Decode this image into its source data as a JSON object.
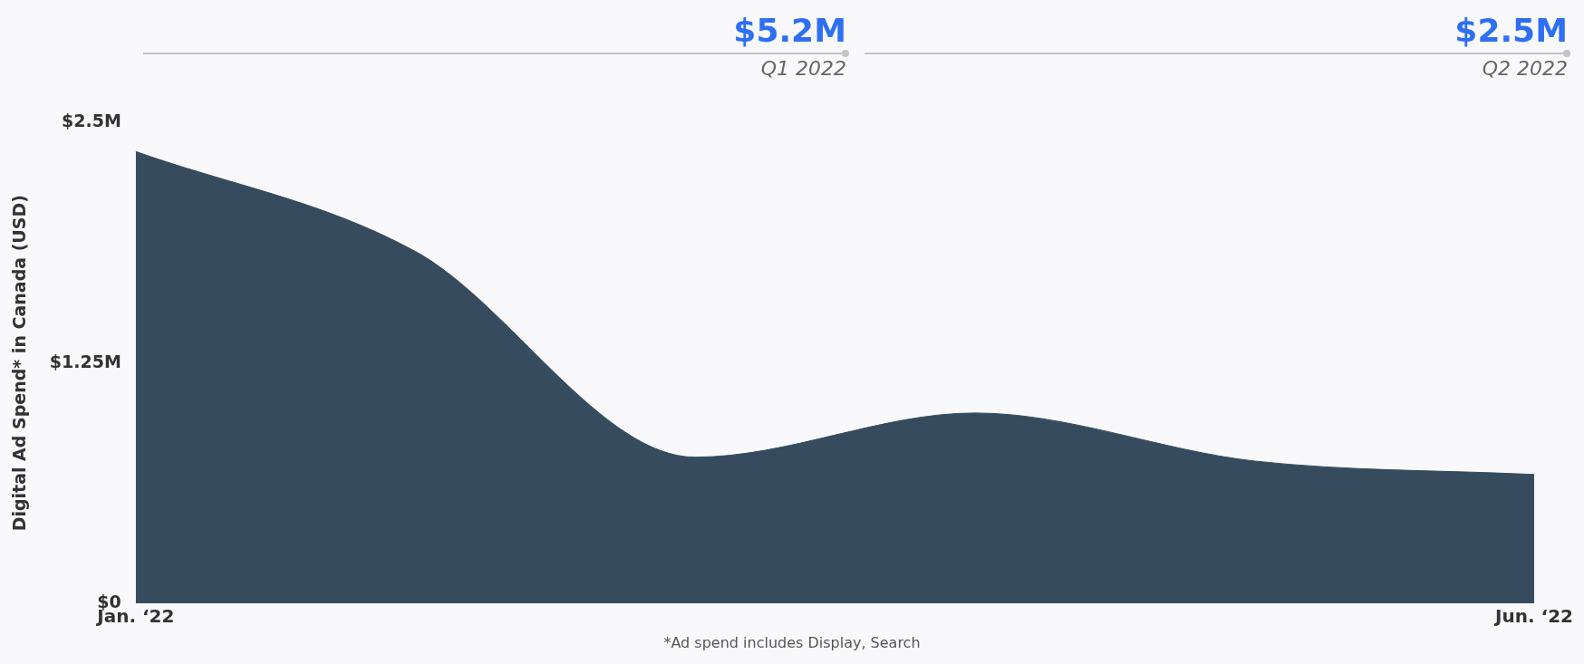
{
  "chart_data": {
    "type": "area",
    "ylabel": "Digital Ad Spend* in Canada (USD)",
    "categories": [
      "Jan. ‘22",
      null,
      null,
      null,
      null,
      "Jun. ‘22"
    ],
    "series": [
      {
        "color": "#364b5d",
        "values": [
          2.35,
          1.83,
          0.76,
          0.99,
          0.74,
          0.67
        ]
      }
    ],
    "ylim": [
      0,
      2.5
    ],
    "yticks": [
      {
        "value": 0,
        "label": "$0"
      },
      {
        "value": 1.25,
        "label": "$1.25M"
      },
      {
        "value": 2.5,
        "label": "$2.5M"
      }
    ],
    "grid": false,
    "legend": false,
    "annotations": [
      "$5.2M",
      "Q1 2022",
      "$2.5M",
      "Q2 2022",
      "*Ad spend includes Display, Search"
    ]
  }
}
